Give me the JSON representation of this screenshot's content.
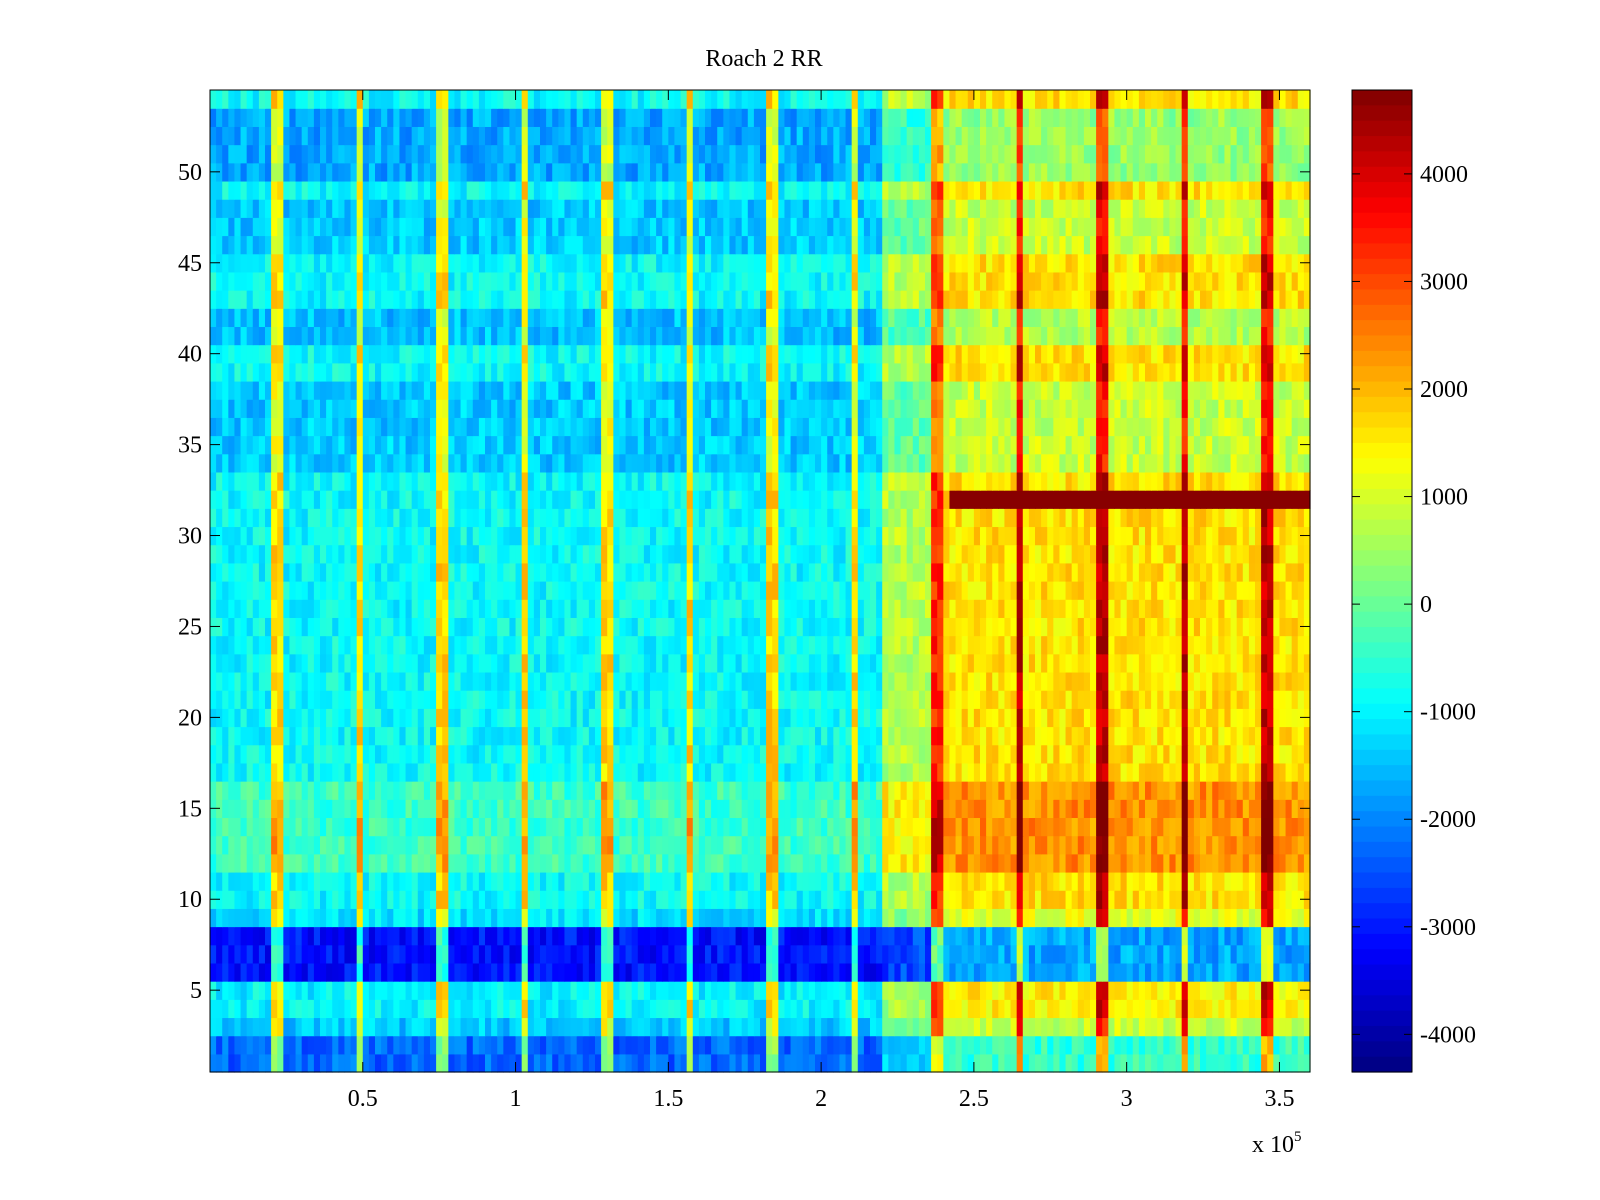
{
  "chart_data": {
    "type": "heatmap",
    "title": "Roach 2 RR",
    "xlabel": "",
    "ylabel": "",
    "x_exponent_label": {
      "base": "x 10",
      "exponent": "5"
    },
    "xlim": [
      0,
      3.6
    ],
    "ylim": [
      0.5,
      54.5
    ],
    "x_ticks": [
      {
        "value": 0.5,
        "label": "0.5"
      },
      {
        "value": 1,
        "label": "1"
      },
      {
        "value": 1.5,
        "label": "1.5"
      },
      {
        "value": 2,
        "label": "2"
      },
      {
        "value": 2.5,
        "label": "2.5"
      },
      {
        "value": 3,
        "label": "3"
      },
      {
        "value": 3.5,
        "label": "3.5"
      }
    ],
    "y_ticks": [
      {
        "value": 5,
        "label": "5"
      },
      {
        "value": 10,
        "label": "10"
      },
      {
        "value": 15,
        "label": "15"
      },
      {
        "value": 20,
        "label": "20"
      },
      {
        "value": 25,
        "label": "25"
      },
      {
        "value": 30,
        "label": "30"
      },
      {
        "value": 35,
        "label": "35"
      },
      {
        "value": 40,
        "label": "40"
      },
      {
        "value": 45,
        "label": "45"
      },
      {
        "value": 50,
        "label": "50"
      }
    ],
    "colormap": "jet",
    "colorbar": {
      "clim": [
        -4350,
        4780
      ],
      "ticks": [
        {
          "value": 4000,
          "label": "4000"
        },
        {
          "value": 3000,
          "label": "3000"
        },
        {
          "value": 2000,
          "label": "2000"
        },
        {
          "value": 1000,
          "label": "1000"
        },
        {
          "value": 0,
          "label": "0"
        },
        {
          "value": -1000,
          "label": "-1000"
        },
        {
          "value": -2000,
          "label": "-2000"
        },
        {
          "value": -3000,
          "label": "-3000"
        },
        {
          "value": -4000,
          "label": "-4000"
        }
      ]
    },
    "rows": 54,
    "columns": 180,
    "time_bands": [
      {
        "x_start": 0,
        "x_end": 2.2,
        "level": -900
      },
      {
        "x_start": 2.2,
        "x_end": 2.4,
        "level": 700
      },
      {
        "x_start": 2.4,
        "x_end": 3.6,
        "level": 1600
      }
    ],
    "row_offsets": [
      {
        "y_from": 1,
        "y_to": 2.5,
        "offset": -1400
      },
      {
        "y_from": 2.5,
        "y_to": 3.5,
        "offset": -500
      },
      {
        "y_from": 3.5,
        "y_to": 5.5,
        "offset": -100
      },
      {
        "y_from": 5.5,
        "y_to": 8.5,
        "offset": -2200
      },
      {
        "y_from": 8.5,
        "y_to": 9.5,
        "offset": -300
      },
      {
        "y_from": 11.5,
        "y_to": 16.5,
        "offset": 500
      },
      {
        "y_from": 33.5,
        "y_to": 38.5,
        "offset": -500
      },
      {
        "y_from": 40.5,
        "y_to": 42.5,
        "offset": -600
      },
      {
        "y_from": 45.5,
        "y_to": 48.5,
        "offset": -500
      },
      {
        "y_from": 49.5,
        "y_to": 53.5,
        "offset": -800
      }
    ],
    "highlight_row": {
      "y": 32,
      "x_start": 2.42,
      "x_end": 3.6,
      "level": 4700
    },
    "spike_columns_x": [
      0.21,
      0.48,
      0.75,
      1.02,
      1.29,
      1.56,
      1.83,
      2.1,
      2.37,
      2.64,
      2.91,
      3.18,
      3.45
    ]
  }
}
